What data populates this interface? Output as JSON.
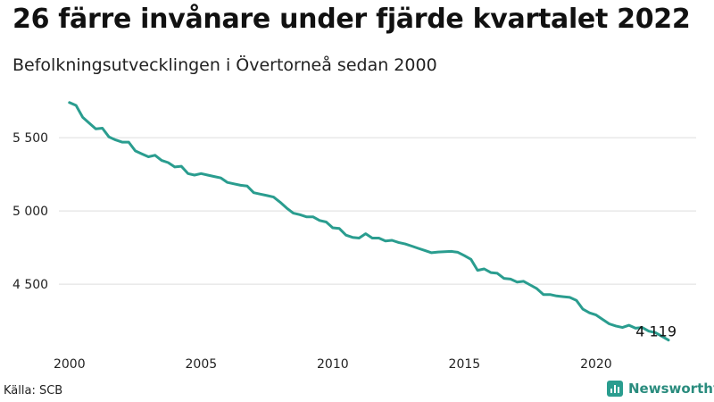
{
  "title": "26 färre invånare under fjärde kvartalet 2022",
  "subtitle": "Befolkningsutvecklingen i Övertorneå sedan 2000",
  "source": "Källa: SCB",
  "brand": "Newsworthy",
  "colors": {
    "line": "#2a9d8f",
    "grid": "#dddddd",
    "brand": "#2a8c7e"
  },
  "chart_data": {
    "type": "line",
    "title": "26 färre invånare under fjärde kvartalet 2022",
    "xlabel": "",
    "ylabel": "",
    "xlim": [
      1999.6,
      2023.8
    ],
    "ylim": [
      4050,
      5830
    ],
    "x_ticks": [
      2000,
      2005,
      2010,
      2015,
      2020
    ],
    "x_tick_labels": [
      "2000",
      "2005",
      "2010",
      "2015",
      "2020"
    ],
    "y_ticks": [
      4500,
      5000,
      5500
    ],
    "y_tick_labels": [
      "4 500",
      "5 000",
      "5 500"
    ],
    "grid": true,
    "end_label": "4 119",
    "series": [
      {
        "name": "",
        "x": [
          2000.0,
          2000.25,
          2000.5,
          2000.75,
          2001.0,
          2001.25,
          2001.5,
          2001.75,
          2002.0,
          2002.25,
          2002.5,
          2002.75,
          2003.0,
          2003.25,
          2003.5,
          2003.75,
          2004.0,
          2004.25,
          2004.5,
          2004.75,
          2005.0,
          2005.25,
          2005.5,
          2005.75,
          2006.0,
          2006.25,
          2006.5,
          2006.75,
          2007.0,
          2007.25,
          2007.5,
          2007.75,
          2008.0,
          2008.25,
          2008.5,
          2008.75,
          2009.0,
          2009.25,
          2009.5,
          2009.75,
          2010.0,
          2010.25,
          2010.5,
          2010.75,
          2011.0,
          2011.25,
          2011.5,
          2011.75,
          2012.0,
          2012.25,
          2012.5,
          2012.75,
          2013.0,
          2013.25,
          2013.5,
          2013.75,
          2014.0,
          2014.25,
          2014.5,
          2014.75,
          2015.0,
          2015.25,
          2015.5,
          2015.75,
          2016.0,
          2016.25,
          2016.5,
          2016.75,
          2017.0,
          2017.25,
          2017.5,
          2017.75,
          2018.0,
          2018.25,
          2018.5,
          2018.75,
          2019.0,
          2019.25,
          2019.5,
          2019.75,
          2020.0,
          2020.25,
          2020.5,
          2020.75,
          2021.0,
          2021.25,
          2021.5,
          2021.75,
          2022.0,
          2022.25,
          2022.5,
          2022.75
        ],
        "values": [
          5740,
          5720,
          5640,
          5600,
          5560,
          5565,
          5505,
          5485,
          5470,
          5470,
          5410,
          5390,
          5370,
          5380,
          5345,
          5330,
          5300,
          5305,
          5255,
          5245,
          5255,
          5245,
          5235,
          5225,
          5195,
          5185,
          5175,
          5170,
          5125,
          5115,
          5105,
          5095,
          5060,
          5020,
          4985,
          4975,
          4960,
          4960,
          4935,
          4925,
          4885,
          4880,
          4835,
          4820,
          4815,
          4845,
          4815,
          4815,
          4795,
          4800,
          4785,
          4775,
          4760,
          4745,
          4730,
          4715,
          4720,
          4722,
          4724,
          4718,
          4695,
          4670,
          4595,
          4605,
          4580,
          4575,
          4540,
          4535,
          4515,
          4520,
          4495,
          4470,
          4430,
          4430,
          4420,
          4415,
          4410,
          4390,
          4330,
          4305,
          4290,
          4260,
          4230,
          4215,
          4205,
          4220,
          4200,
          4205,
          4180,
          4170,
          4145,
          4119
        ]
      }
    ]
  }
}
